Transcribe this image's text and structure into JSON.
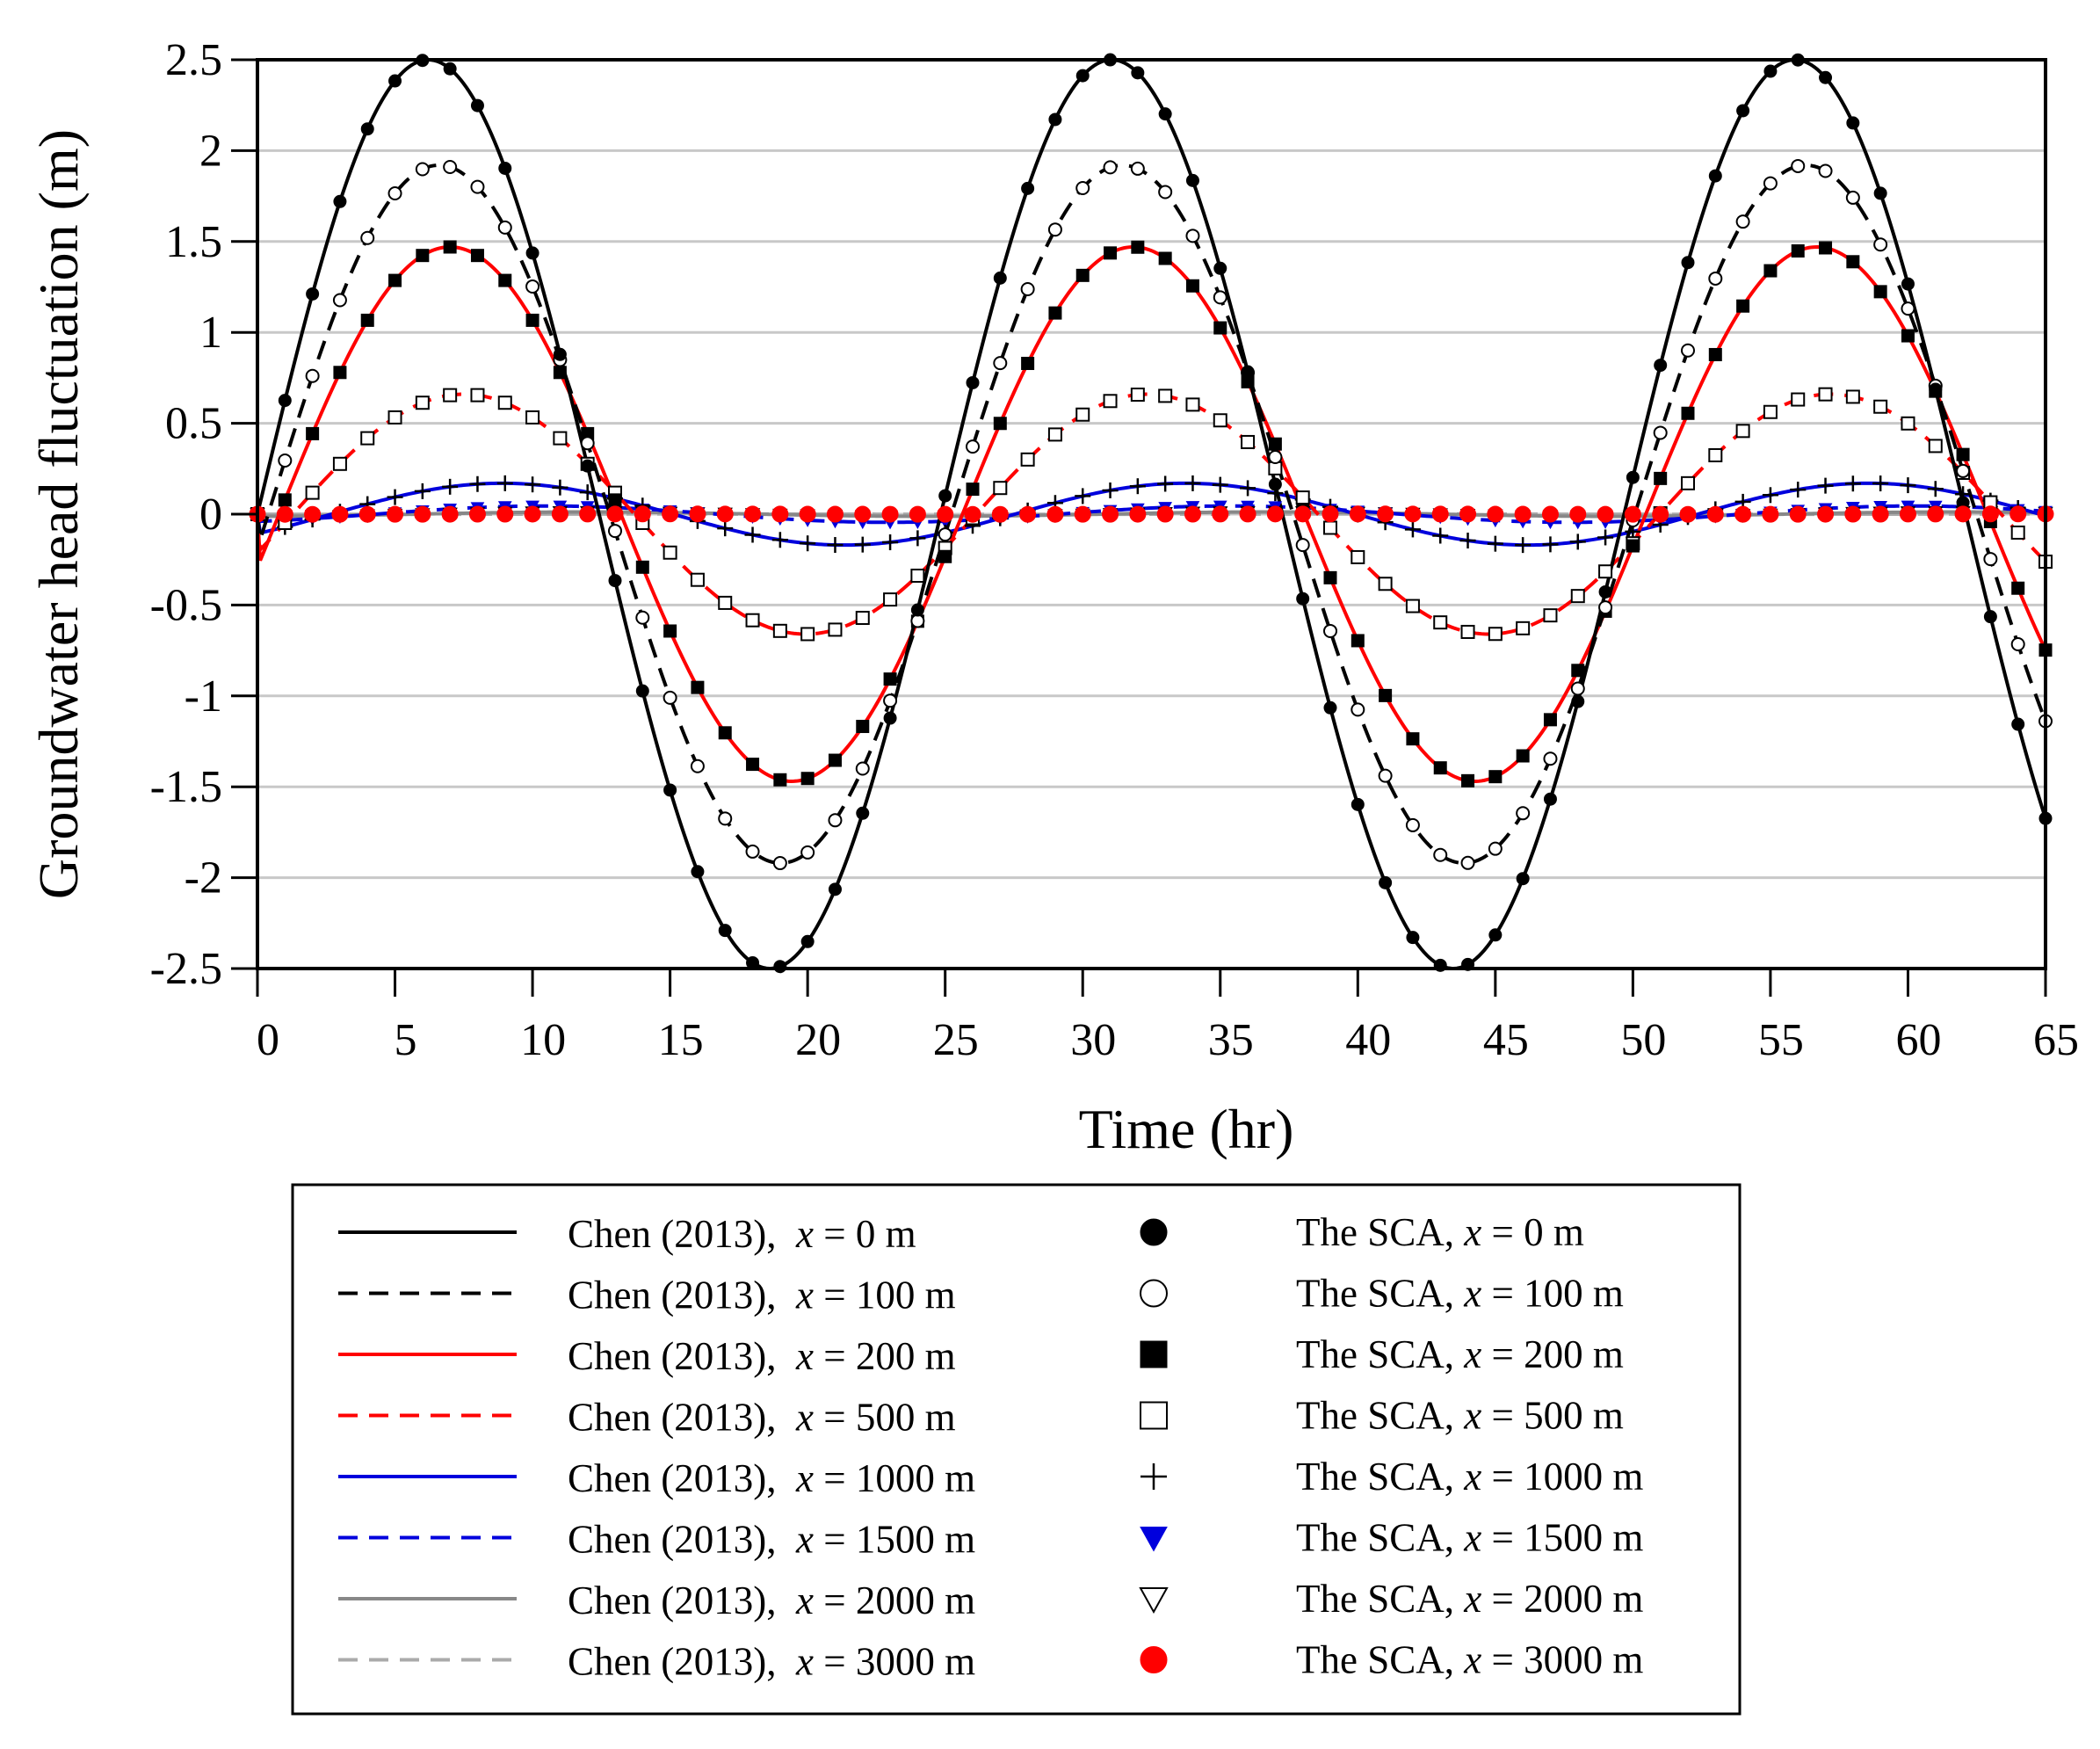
{
  "chart_data": {
    "type": "line",
    "title": "",
    "xlabel": "Time (hr)",
    "ylabel": "Groundwater head fluctuation (m)",
    "xlim": [
      0,
      65
    ],
    "ylim": [
      -2.5,
      2.5
    ],
    "xticks": [
      "0",
      "5",
      "10",
      "15",
      "20",
      "25",
      "30",
      "35",
      "40",
      "45",
      "50",
      "55",
      "60",
      "65"
    ],
    "yticks": [
      "2.5",
      "2",
      "1.5",
      "1",
      "0.5",
      "0",
      "-0.5",
      "-1",
      "-1.5",
      "-2",
      "-2.5"
    ],
    "grid": "horizontal",
    "legend_position": "bottom",
    "period_hr": 24.84,
    "analytic_series": [
      {
        "name": "Chen (2013), x = 0 m",
        "prefix": "Chen (2013),",
        "x_label": "0",
        "amplitude": 2.5,
        "peak_time": 6.21,
        "color": "#000000",
        "dash": "solid"
      },
      {
        "name": "Chen (2013), x = 100 m",
        "prefix": "Chen (2013),",
        "x_label": "100",
        "amplitude": 1.92,
        "peak_time": 6.6,
        "color": "#000000",
        "dash": "dashed"
      },
      {
        "name": "Chen (2013), x = 200 m",
        "prefix": "Chen (2013),",
        "x_label": "200",
        "amplitude": 1.47,
        "peak_time": 7.0,
        "color": "#ff0000",
        "dash": "solid"
      },
      {
        "name": "Chen (2013), x = 500 m",
        "prefix": "Chen (2013),",
        "x_label": "500",
        "amplitude": 0.66,
        "peak_time": 7.5,
        "color": "#ff0000",
        "dash": "dashed"
      },
      {
        "name": "Chen (2013), x = 1000 m",
        "prefix": "Chen (2013),",
        "x_label": "1000",
        "amplitude": 0.17,
        "peak_time": 8.9,
        "color": "#0000dd",
        "dash": "solid"
      },
      {
        "name": "Chen (2013), x = 1500 m",
        "prefix": "Chen (2013),",
        "x_label": "1500",
        "amplitude": 0.045,
        "peak_time": 10.5,
        "color": "#0000dd",
        "dash": "dashed"
      },
      {
        "name": "Chen (2013), x = 2000 m",
        "prefix": "Chen (2013),",
        "x_label": "2000",
        "amplitude": 0.012,
        "peak_time": 12.0,
        "color": "#888888",
        "dash": "solid"
      },
      {
        "name": "Chen (2013), x = 3000 m",
        "prefix": "Chen (2013),",
        "x_label": "3000",
        "amplitude": 0.001,
        "peak_time": 15.0,
        "color": "#aaaaaa",
        "dash": "dashed"
      }
    ],
    "sca_series": [
      {
        "name": "The SCA, x = 0 m",
        "prefix": "The SCA,",
        "x_label": "0",
        "amplitude": 2.5,
        "peak_time": 6.21,
        "marker": "filled-circle",
        "color": "#000000"
      },
      {
        "name": "The SCA, x = 100 m",
        "prefix": "The SCA,",
        "x_label": "100",
        "amplitude": 1.92,
        "peak_time": 6.6,
        "marker": "open-circle",
        "color": "#000000"
      },
      {
        "name": "The SCA, x = 200 m",
        "prefix": "The SCA,",
        "x_label": "200",
        "amplitude": 1.47,
        "peak_time": 7.0,
        "marker": "filled-square",
        "color": "#000000"
      },
      {
        "name": "The SCA, x = 500 m",
        "prefix": "The SCA,",
        "x_label": "500",
        "amplitude": 0.66,
        "peak_time": 7.5,
        "marker": "open-square",
        "color": "#000000"
      },
      {
        "name": "The SCA, x = 1000 m",
        "prefix": "The SCA,",
        "x_label": "1000",
        "amplitude": 0.17,
        "peak_time": 8.9,
        "marker": "plus",
        "color": "#000000"
      },
      {
        "name": "The SCA, x = 1500 m",
        "prefix": "The SCA,",
        "x_label": "1500",
        "amplitude": 0.045,
        "peak_time": 10.5,
        "marker": "filled-triangle-down",
        "color": "#0000dd"
      },
      {
        "name": "The SCA, x = 2000 m",
        "prefix": "The SCA,",
        "x_label": "2000",
        "amplitude": 0.012,
        "peak_time": 12.0,
        "marker": "open-triangle-down",
        "color": "#000000"
      },
      {
        "name": "The SCA, x = 3000 m",
        "prefix": "The SCA,",
        "x_label": "3000",
        "amplitude": 0.001,
        "peak_time": 15.0,
        "marker": "filled-circle",
        "color": "#ff0000"
      }
    ],
    "sca_sample_times_hr": [
      0,
      1,
      2,
      3,
      4,
      5,
      6,
      7,
      8,
      9,
      10,
      11,
      12,
      13,
      14,
      15,
      16,
      17,
      18,
      19,
      20,
      21,
      22,
      23,
      24,
      25,
      26,
      27,
      28,
      29,
      30,
      31,
      32,
      33,
      34,
      35,
      36,
      37,
      38,
      39,
      40,
      41,
      42,
      43,
      44,
      45,
      46,
      47,
      48,
      49,
      50,
      51,
      52,
      53,
      54,
      55,
      56,
      57,
      58,
      59,
      60,
      61,
      62,
      63,
      64,
      65
    ],
    "legend_unit": "m",
    "legend_var": "x"
  }
}
